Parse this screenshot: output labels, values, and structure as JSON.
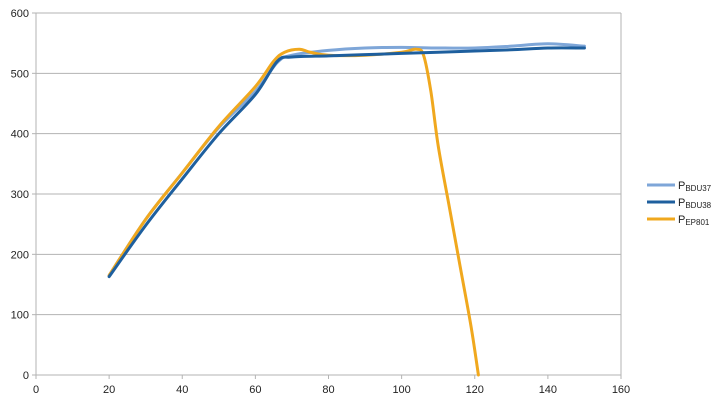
{
  "chart_data": {
    "type": "line",
    "title": "",
    "xlabel": "",
    "ylabel": "",
    "xlim": [
      0,
      160
    ],
    "ylim": [
      0,
      600
    ],
    "x_ticks": [
      0,
      20,
      40,
      60,
      80,
      100,
      120,
      140,
      160
    ],
    "y_ticks": [
      0,
      100,
      200,
      300,
      400,
      500,
      600
    ],
    "grid": "horizontal",
    "legend_position": "right",
    "series": [
      {
        "name": "P",
        "name_sub": "BDU37",
        "color": "#7ea6d8",
        "points": [
          [
            20,
            165
          ],
          [
            30,
            258
          ],
          [
            40,
            335
          ],
          [
            50,
            410
          ],
          [
            60,
            470
          ],
          [
            66,
            518
          ],
          [
            70,
            530
          ],
          [
            80,
            538
          ],
          [
            90,
            542
          ],
          [
            100,
            543
          ],
          [
            110,
            542
          ],
          [
            120,
            542
          ],
          [
            130,
            545
          ],
          [
            140,
            549
          ],
          [
            150,
            545
          ]
        ]
      },
      {
        "name": "P",
        "name_sub": "BDU38",
        "color": "#1e5f9e",
        "points": [
          [
            20,
            163
          ],
          [
            30,
            248
          ],
          [
            40,
            325
          ],
          [
            50,
            400
          ],
          [
            60,
            465
          ],
          [
            66,
            520
          ],
          [
            70,
            527
          ],
          [
            80,
            529
          ],
          [
            90,
            531
          ],
          [
            100,
            533
          ],
          [
            110,
            535
          ],
          [
            120,
            537
          ],
          [
            130,
            539
          ],
          [
            140,
            542
          ],
          [
            150,
            542
          ]
        ]
      },
      {
        "name": "P",
        "name_sub": "EP801",
        "color": "#f0a81e",
        "points": [
          [
            20,
            165
          ],
          [
            30,
            258
          ],
          [
            40,
            335
          ],
          [
            50,
            412
          ],
          [
            60,
            478
          ],
          [
            65,
            520
          ],
          [
            68,
            535
          ],
          [
            72,
            540
          ],
          [
            75,
            535
          ],
          [
            80,
            530
          ],
          [
            90,
            530
          ],
          [
            100,
            535
          ],
          [
            104,
            540
          ],
          [
            106,
            530
          ],
          [
            108,
            470
          ],
          [
            110,
            380
          ],
          [
            113,
            280
          ],
          [
            116,
            180
          ],
          [
            119,
            80
          ],
          [
            121,
            0
          ]
        ]
      }
    ]
  }
}
